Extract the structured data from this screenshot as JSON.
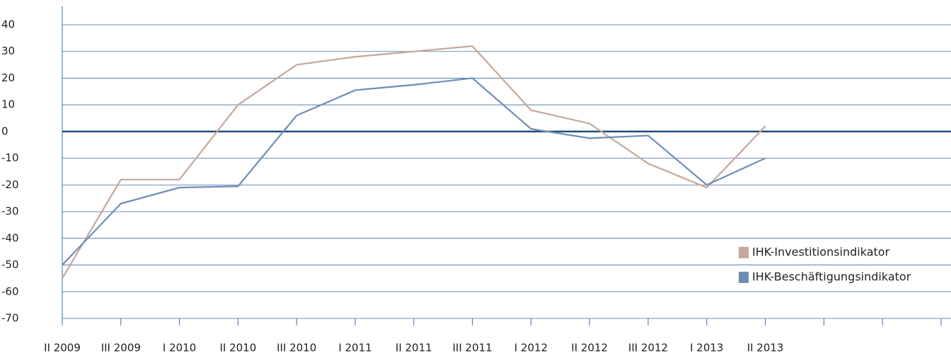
{
  "chart_data": {
    "type": "line",
    "categories": [
      "II 2009",
      "III 2009",
      "I 2010",
      "II 2010",
      "III 2010",
      "I 2011",
      "II 2011",
      "III 2011",
      "I 2012",
      "II 2012",
      "III 2012",
      "I 2013",
      "II 2013",
      null,
      null,
      null
    ],
    "series": [
      {
        "name": "IHK-Investitionsindikator",
        "color": "#c4a89a",
        "values": [
          -55,
          -18,
          -18,
          10,
          25,
          28,
          30,
          32,
          8,
          3,
          -12,
          -21,
          2,
          null,
          null,
          null
        ]
      },
      {
        "name": "IHK-Beschäftigungsindikator",
        "color": "#6e8db5",
        "values": [
          -50,
          -27,
          -21,
          -20.5,
          6,
          15.5,
          17.5,
          20,
          1,
          -2.5,
          -1.5,
          -20,
          -10,
          null,
          null,
          null
        ]
      }
    ],
    "ylim": [
      -70,
      47
    ],
    "yticks": [
      -70,
      -60,
      -50,
      -40,
      -30,
      -20,
      -10,
      0,
      10,
      20,
      30,
      40
    ],
    "grid": true,
    "grid_color": "#3a6ea5",
    "legend": "lower right"
  }
}
